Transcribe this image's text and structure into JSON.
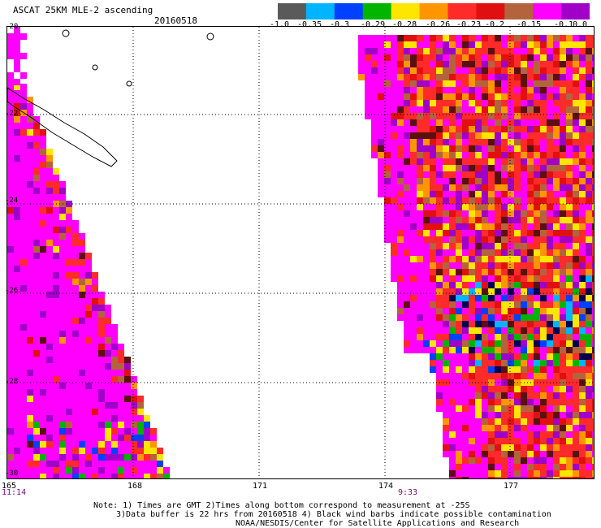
{
  "title": "ASCAT 25KM MLE-2 ascending",
  "date": "20160518",
  "colorbar": {
    "labels": [
      "-1.0",
      "-0.35",
      "-0.3",
      "-0.29",
      "-0.28",
      "-0.26",
      "-0.23",
      "-0.2",
      "-0.15",
      "-0.1",
      "0.0"
    ],
    "colors": [
      "#5a5a5a",
      "#00b4ff",
      "#0040ff",
      "#00b400",
      "#ffe600",
      "#ff9600",
      "#ff2a2a",
      "#e01010",
      "#b4643c",
      "#ff00ff",
      "#a000c8"
    ]
  },
  "lat_labels": [
    "-20",
    "-22",
    "-24",
    "-26",
    "-28",
    "-30"
  ],
  "lon_labels": [
    "165",
    "168",
    "171",
    "174",
    "177"
  ],
  "time_labels": [
    "11:14",
    "9:33"
  ],
  "notes": {
    "line1": "Note: 1) Times are GMT 2)Times along bottom correspond to measurement at -25S",
    "line2": "3)Data buffer is 22 hrs from 20160518 4) Black wind barbs indicate possible contamination",
    "line3": "NOAA/NESDIS/Center for Satellite Applications and Research"
  }
}
